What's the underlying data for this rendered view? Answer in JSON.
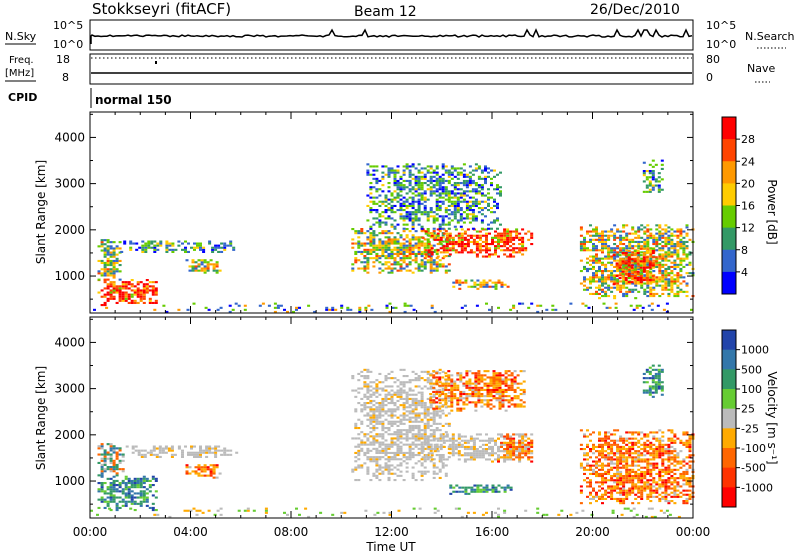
{
  "header": {
    "station": "Stokkseyri (fitACF)",
    "beam": "Beam 12",
    "date": "26/Dec/2010"
  },
  "top_panels": {
    "nsky_label": "N.Sky",
    "nsky_ticks": [
      "10^5",
      "10^0"
    ],
    "nsearch_label": "N.Search",
    "freq_label": "Freq.",
    "freq_unit": "[MHz]",
    "freq_ticks": [
      "18",
      "8"
    ],
    "nave_label": "Nave",
    "nave_ticks": [
      "80",
      "0"
    ],
    "cpid_label": "CPID",
    "cpid_value": "normal 150"
  },
  "chart_data": [
    {
      "type": "heatmap",
      "panel": "power",
      "ylabel": "Slant Range [km]",
      "yticks": [
        1000,
        2000,
        3000,
        4000
      ],
      "ylim": [
        200,
        4550
      ],
      "xlim_hours": [
        0,
        24
      ],
      "colorbar_label": "Power [dB]",
      "colorbar_ticks": [
        "28",
        "24",
        "20",
        "16",
        "12",
        "8",
        "4"
      ],
      "colorbar_colors": [
        "#ff0000",
        "#ff4400",
        "#ff9900",
        "#ffcc00",
        "#66cc00",
        "#339966",
        "#3366cc",
        "#0000ff"
      ],
      "regions": [
        {
          "t0": 0.3,
          "t1": 2.7,
          "r0": 350,
          "r1": 900,
          "intensity": "high"
        },
        {
          "t0": 0.3,
          "t1": 1.2,
          "r0": 900,
          "r1": 1800,
          "intensity": "medium"
        },
        {
          "t0": 1.2,
          "t1": 3.5,
          "r0": 1500,
          "r1": 1750,
          "intensity": "low"
        },
        {
          "t0": 3.5,
          "t1": 5.9,
          "r0": 1500,
          "r1": 1750,
          "intensity": "low"
        },
        {
          "t0": 3.8,
          "t1": 5.2,
          "r0": 1050,
          "r1": 1350,
          "intensity": "medium"
        },
        {
          "t0": 10.4,
          "t1": 14.3,
          "r0": 1050,
          "r1": 2000,
          "intensity": "medium"
        },
        {
          "t0": 13.2,
          "t1": 17.6,
          "r0": 1400,
          "r1": 2000,
          "intensity": "high"
        },
        {
          "t0": 11.0,
          "t1": 16.3,
          "r0": 2000,
          "r1": 3400,
          "intensity": "low"
        },
        {
          "t0": 14.3,
          "t1": 16.8,
          "r0": 700,
          "r1": 900,
          "intensity": "medium"
        },
        {
          "t0": 19.5,
          "t1": 24.0,
          "r0": 500,
          "r1": 2100,
          "intensity": "medium"
        },
        {
          "t0": 20.8,
          "t1": 22.5,
          "r0": 800,
          "r1": 1600,
          "intensity": "high"
        },
        {
          "t0": 22.0,
          "t1": 22.8,
          "r0": 2800,
          "r1": 3500,
          "intensity": "low"
        },
        {
          "t0": 0.0,
          "t1": 24.0,
          "r0": 200,
          "r1": 400,
          "intensity": "sparse"
        }
      ]
    },
    {
      "type": "heatmap",
      "panel": "velocity",
      "ylabel": "Slant Range [km]",
      "xlabel": "Time UT",
      "yticks": [
        1000,
        2000,
        3000,
        4000
      ],
      "ylim": [
        200,
        4550
      ],
      "xlim_hours": [
        0,
        24
      ],
      "xticks": [
        "00:00",
        "04:00",
        "08:00",
        "12:00",
        "16:00",
        "20:00",
        "00:00"
      ],
      "colorbar_label": "Velocity [m s⁻¹]",
      "colorbar_ticks": [
        "1000",
        "500",
        "100",
        "25",
        "-25",
        "-100",
        "-500",
        "-1000"
      ],
      "colorbar_colors": [
        "#2244aa",
        "#3377aa",
        "#339966",
        "#66cc33",
        "#bbbbbb",
        "#ffaa00",
        "#ff6600",
        "#ff3300",
        "#ff0000"
      ],
      "regions": [
        {
          "t0": 0.3,
          "t1": 2.6,
          "r0": 350,
          "r1": 1100,
          "class": "positive"
        },
        {
          "t0": 0.3,
          "t1": 1.3,
          "r0": 1100,
          "r1": 1800,
          "class": "mixed"
        },
        {
          "t0": 1.3,
          "t1": 3.5,
          "r0": 1500,
          "r1": 1750,
          "class": "grey"
        },
        {
          "t0": 3.5,
          "t1": 5.8,
          "r0": 1500,
          "r1": 1750,
          "class": "grey"
        },
        {
          "t0": 3.8,
          "t1": 5.2,
          "r0": 1050,
          "r1": 1350,
          "class": "negative"
        },
        {
          "t0": 10.4,
          "t1": 14.3,
          "r0": 1000,
          "r1": 3400,
          "class": "grey"
        },
        {
          "t0": 13.2,
          "t1": 17.6,
          "r0": 1400,
          "r1": 2000,
          "class": "grey"
        },
        {
          "t0": 13.5,
          "t1": 17.3,
          "r0": 2500,
          "r1": 3400,
          "class": "negative"
        },
        {
          "t0": 16.2,
          "t1": 17.6,
          "r0": 1400,
          "r1": 2000,
          "class": "negative"
        },
        {
          "t0": 14.3,
          "t1": 16.8,
          "r0": 700,
          "r1": 900,
          "class": "positive"
        },
        {
          "t0": 19.5,
          "t1": 24.0,
          "r0": 500,
          "r1": 2100,
          "class": "negative"
        },
        {
          "t0": 22.0,
          "t1": 22.8,
          "r0": 2800,
          "r1": 3500,
          "class": "positive"
        },
        {
          "t0": 0.0,
          "t1": 24.0,
          "r0": 200,
          "r1": 400,
          "class": "sparse"
        }
      ]
    }
  ]
}
